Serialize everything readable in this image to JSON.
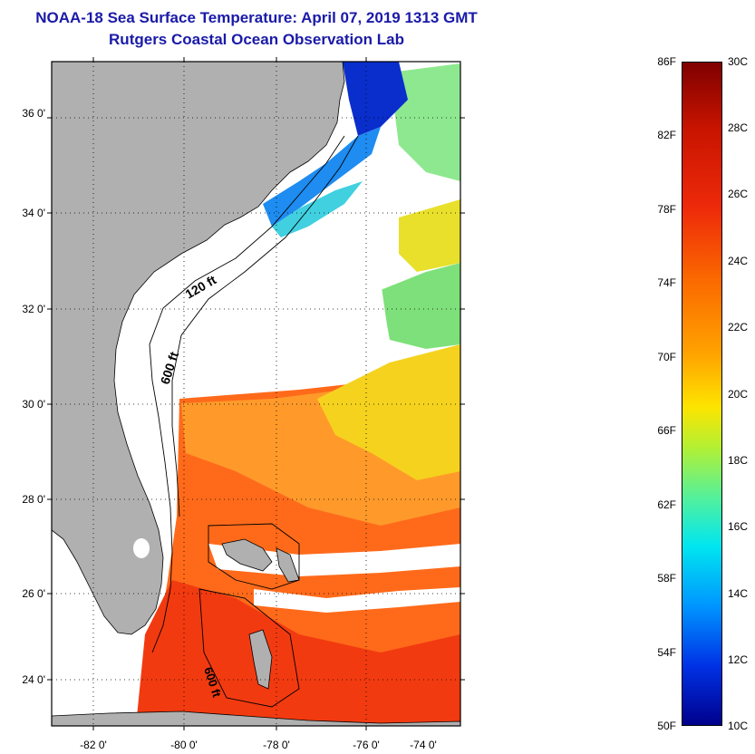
{
  "title": {
    "line1": "NOAA-18 Sea Surface Temperature:  April 07, 2019 1313 GMT",
    "line2": "Rutgers Coastal Ocean Observation Lab"
  },
  "map": {
    "lat_labels": [
      "36 0'",
      "34 0'",
      "32 0'",
      "30 0'",
      "28 0'",
      "26 0'",
      "24 0'"
    ],
    "lon_labels": [
      "-82 0'",
      "-80 0'",
      "-78 0'",
      "-76 0'",
      "-74 0'"
    ],
    "contour_labels": [
      "120 ft",
      "600 ft",
      "600 ft"
    ],
    "land_color": "#b0b0b0",
    "cloud_color": "#ffffff"
  },
  "colorbar": {
    "fahrenheit": [
      "86F",
      "82F",
      "78F",
      "74F",
      "70F",
      "66F",
      "62F",
      "58F",
      "54F",
      "50F"
    ],
    "celsius": [
      "30C",
      "28C",
      "26C",
      "24C",
      "22C",
      "20C",
      "18C",
      "16C",
      "14C",
      "12C",
      "10C"
    ],
    "colors": [
      "#7f0000",
      "#ee2a0a",
      "#ffa300",
      "#fde400",
      "#50f0a0",
      "#00e6f0",
      "#0032e6",
      "#00008c"
    ]
  }
}
